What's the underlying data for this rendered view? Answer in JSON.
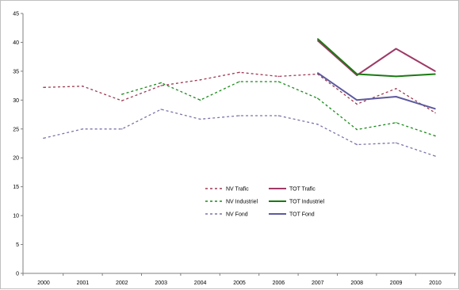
{
  "chart_data": {
    "type": "line",
    "title": "",
    "xlabel": "",
    "ylabel": "",
    "categories": [
      "2000",
      "2001",
      "2002",
      "2003",
      "2004",
      "2005",
      "2006",
      "2007",
      "2008",
      "2009",
      "2010"
    ],
    "ylim": [
      0,
      45
    ],
    "yticks": [
      0,
      5,
      10,
      15,
      20,
      25,
      30,
      35,
      40,
      45
    ],
    "grid": false,
    "legend_position": "center",
    "series": [
      {
        "name": "NV Trafic",
        "style": "dashed",
        "color": "#9e3a52",
        "values": [
          32.2,
          32.4,
          29.9,
          32.5,
          33.5,
          34.8,
          34.1,
          34.5,
          29.3,
          32.0,
          27.8
        ]
      },
      {
        "name": "NV Industriel",
        "style": "dashed",
        "color": "#1a8a1a",
        "values": [
          null,
          null,
          31.0,
          33.0,
          30.0,
          33.2,
          33.2,
          30.3,
          24.9,
          26.1,
          23.8
        ]
      },
      {
        "name": "NV Fond",
        "style": "dashed",
        "color": "#7f72a8",
        "values": [
          23.4,
          25.0,
          25.0,
          28.4,
          26.7,
          27.3,
          27.3,
          25.8,
          22.3,
          22.6,
          20.3
        ]
      },
      {
        "name": "TOT Trafic",
        "style": "solid",
        "color": "#9e3a66",
        "values": [
          null,
          null,
          null,
          null,
          null,
          null,
          null,
          40.3,
          34.3,
          38.9,
          35.0
        ]
      },
      {
        "name": "TOT Industriel",
        "style": "solid",
        "color": "#1a7a12",
        "values": [
          null,
          null,
          null,
          null,
          null,
          null,
          null,
          40.6,
          34.5,
          34.1,
          34.5
        ]
      },
      {
        "name": "TOT Fond",
        "style": "solid",
        "color": "#5d5a9e",
        "values": [
          null,
          null,
          null,
          null,
          null,
          null,
          null,
          34.7,
          30.0,
          30.6,
          28.5
        ]
      }
    ]
  }
}
